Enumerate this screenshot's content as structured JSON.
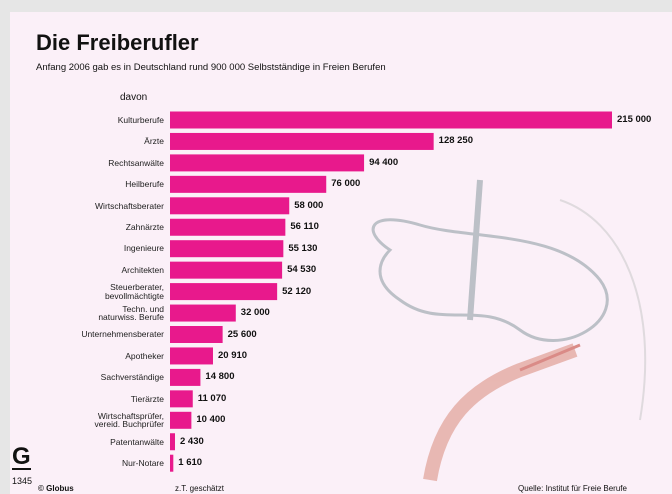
{
  "chart_data": {
    "type": "bar",
    "orientation": "horizontal",
    "title": "Die Freiberufler",
    "subtitle": "Anfang 2006 gab es in Deutschland rund 900 000 Selbstständige in Freien Berufen",
    "category_header": "davon",
    "categories": [
      "Kulturberufe",
      "Ärzte",
      "Rechtsanwälte",
      "Heilberufe",
      "Wirtschaftsberater",
      "Zahnärzte",
      "Ingenieure",
      "Architekten",
      "Steuerberater,\nbevollmächtigte",
      "Techn. und\nnaturwiss. Berufe",
      "Unternehmensberater",
      "Apotheker",
      "Sachverständige",
      "Tierärzte",
      "Wirtschaftsprüfer,\nvereid. Buchprüfer",
      "Patentanwälte",
      "Nur-Notare"
    ],
    "values": [
      215000,
      128250,
      94400,
      76000,
      58000,
      56110,
      55130,
      54530,
      52120,
      32000,
      25600,
      20910,
      14800,
      11070,
      10400,
      2430,
      1610
    ],
    "value_labels": [
      "215 000",
      "128 250",
      "94 400",
      "76 000",
      "58 000",
      "56 110",
      "55 130",
      "54 530",
      "52 120",
      "32 000",
      "25 600",
      "20 910",
      "14 800",
      "11 070",
      "10 400",
      "2 430",
      "1 610"
    ],
    "color": "#e8198c",
    "logo": "G",
    "logo_number": "1345",
    "credit": "© Globus",
    "note": "z.T. geschätzt",
    "source": "Quelle: Institut für Freie Berufe"
  }
}
